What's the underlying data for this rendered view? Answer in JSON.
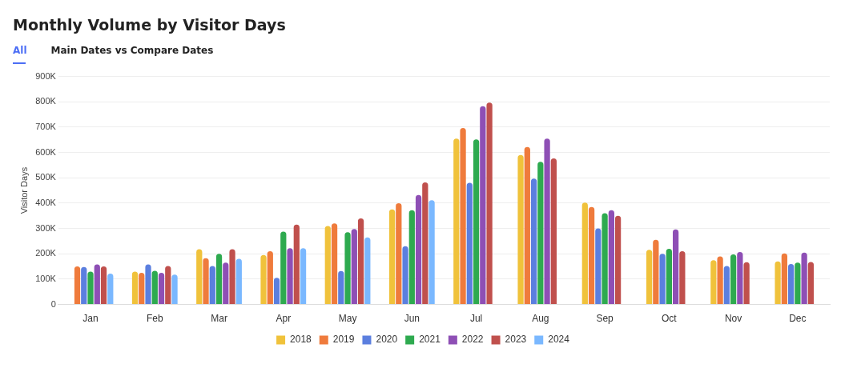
{
  "chart_data": {
    "type": "bar",
    "title": "Monthly Volume by Visitor Days",
    "annotations": [
      "All",
      "Main Dates vs Compare Dates"
    ],
    "ylabel": "Visitor Days",
    "categories": [
      "Jan",
      "Feb",
      "Mar",
      "Apr",
      "May",
      "Jun",
      "Jul",
      "Aug",
      "Sep",
      "Oct",
      "Nov",
      "Dec"
    ],
    "series": [
      {
        "name": "2018",
        "color": "#f0c23b",
        "values": [
          null,
          130000,
          218000,
          195000,
          310000,
          375000,
          655000,
          590000,
          402000,
          216000,
          175000,
          170000
        ]
      },
      {
        "name": "2019",
        "color": "#ef7b3c",
        "values": [
          150000,
          125000,
          183000,
          210000,
          320000,
          400000,
          697000,
          622000,
          385000,
          255000,
          190000,
          202000
        ]
      },
      {
        "name": "2020",
        "color": "#5b7fdf",
        "values": [
          148000,
          158000,
          152000,
          105000,
          132000,
          230000,
          480000,
          497000,
          300000,
          200000,
          152000,
          160000
        ]
      },
      {
        "name": "2021",
        "color": "#2eaa4f",
        "values": [
          130000,
          133000,
          200000,
          288000,
          285000,
          372000,
          652000,
          563000,
          360000,
          220000,
          198000,
          165000
        ]
      },
      {
        "name": "2022",
        "color": "#8e4fb5",
        "values": [
          158000,
          125000,
          165000,
          222000,
          298000,
          432000,
          783000,
          655000,
          372000,
          296000,
          207000,
          205000
        ]
      },
      {
        "name": "2023",
        "color": "#c0504d",
        "values": [
          150000,
          152000,
          218000,
          315000,
          340000,
          482000,
          797000,
          577000,
          350000,
          210000,
          167000,
          168000
        ]
      },
      {
        "name": "2024",
        "color": "#7ab8ff",
        "values": [
          122000,
          118000,
          180000,
          222000,
          265000,
          412000,
          null,
          null,
          null,
          null,
          null,
          null
        ]
      }
    ],
    "ylim": [
      0,
      900000
    ],
    "yticks": [
      0,
      {
        "value": 100000,
        "label": "100K"
      },
      {
        "value": 200000,
        "label": "200K"
      },
      {
        "value": 300000,
        "label": "300K"
      },
      {
        "value": 400000,
        "label": "400K"
      },
      {
        "value": 500000,
        "label": "500K"
      },
      {
        "value": 600000,
        "label": "600K"
      },
      {
        "value": 700000,
        "label": "700K"
      },
      {
        "value": 800000,
        "label": "800K"
      },
      {
        "value": 900000,
        "label": "900K"
      }
    ],
    "grid": "y",
    "legend": "bottom"
  }
}
